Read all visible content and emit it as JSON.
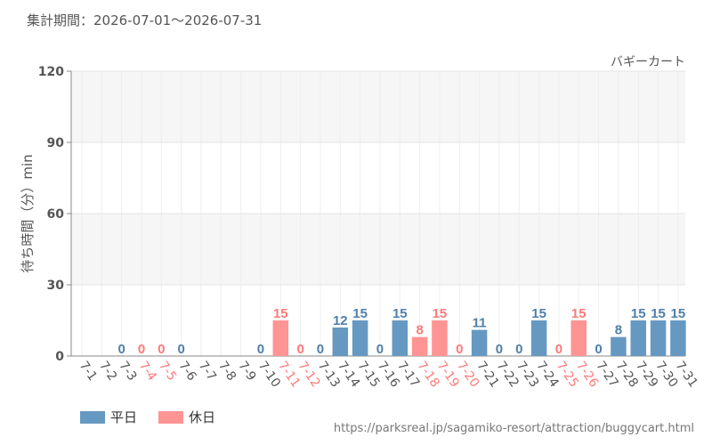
{
  "header": {
    "period_label": "集計期間：2026-07-01〜2026-07-31"
  },
  "footer": {
    "source_url": "https://parksreal.jp/sagamiko-resort/attraction/buggycart.html"
  },
  "colors": {
    "weekday": "#6699c2",
    "holiday": "#ff9494",
    "weekday_label": "#4f80aa",
    "holiday_label": "#ff7a7a"
  },
  "chart_data": {
    "type": "bar",
    "title": "バギーカート",
    "ylabel": "待ち時間（分）min",
    "xlabel": "",
    "ylim": [
      0,
      120
    ],
    "yticks": [
      0,
      30,
      60,
      90,
      120
    ],
    "grid": true,
    "legend": [
      {
        "name": "平日",
        "key": "weekday"
      },
      {
        "name": "休日",
        "key": "holiday"
      }
    ],
    "categories": [
      "7-1",
      "7-2",
      "7-3",
      "7-4",
      "7-5",
      "7-6",
      "7-7",
      "7-8",
      "7-9",
      "7-10",
      "7-11",
      "7-12",
      "7-13",
      "7-14",
      "7-15",
      "7-16",
      "7-17",
      "7-18",
      "7-19",
      "7-20",
      "7-21",
      "7-22",
      "7-23",
      "7-24",
      "7-25",
      "7-26",
      "7-27",
      "7-28",
      "7-29",
      "7-30",
      "7-31"
    ],
    "day_types": [
      "weekday",
      "weekday",
      "weekday",
      "holiday",
      "holiday",
      "weekday",
      "weekday",
      "weekday",
      "weekday",
      "weekday",
      "holiday",
      "holiday",
      "weekday",
      "weekday",
      "weekday",
      "weekday",
      "weekday",
      "holiday",
      "holiday",
      "holiday",
      "weekday",
      "weekday",
      "weekday",
      "weekday",
      "holiday",
      "holiday",
      "weekday",
      "weekday",
      "weekday",
      "weekday",
      "weekday"
    ],
    "values": [
      null,
      null,
      0,
      0,
      0,
      0,
      null,
      null,
      null,
      0,
      15,
      0,
      0,
      12,
      15,
      0,
      15,
      8,
      15,
      0,
      11,
      0,
      0,
      15,
      0,
      15,
      0,
      8,
      15,
      15,
      15
    ]
  }
}
